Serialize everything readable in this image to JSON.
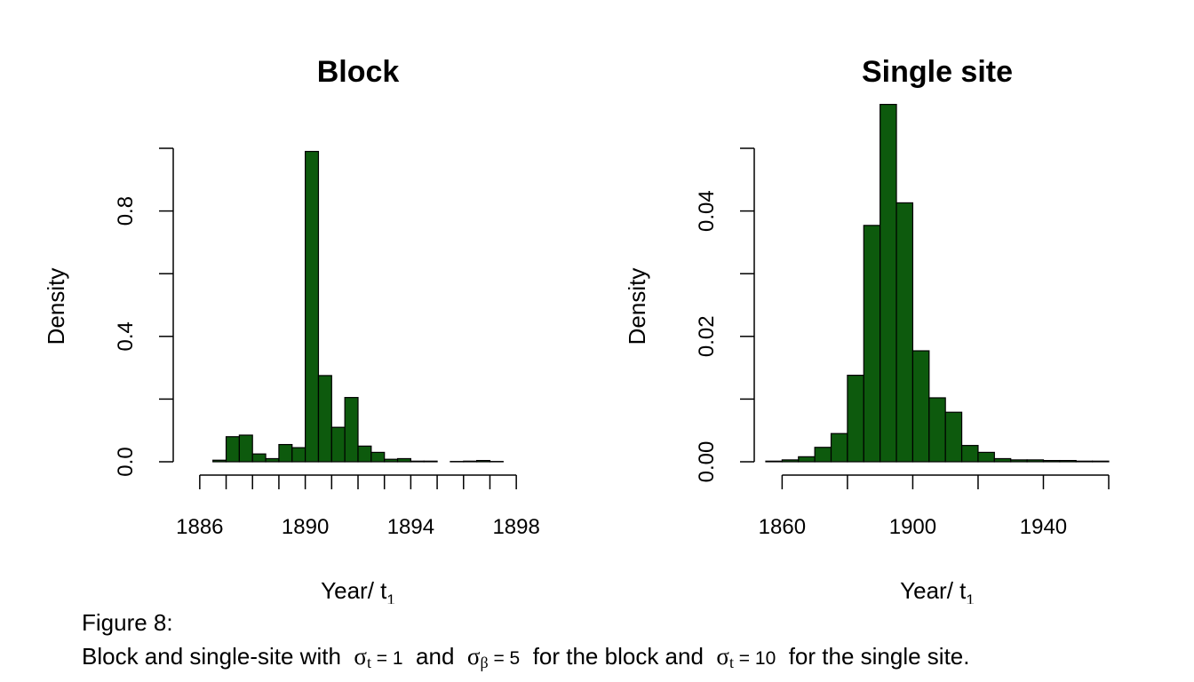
{
  "chart_data": [
    {
      "type": "bar",
      "title": "Block",
      "xlabel": "Year/ t",
      "xlabel_sub": "1",
      "ylabel": "Density",
      "xlim": [
        1885.5,
        1898.5
      ],
      "ylim": [
        0,
        1.0
      ],
      "xticks": [
        1886,
        1887,
        1888,
        1889,
        1890,
        1891,
        1892,
        1893,
        1894,
        1895,
        1896,
        1897,
        1898
      ],
      "xtick_labels": [
        "1886",
        "",
        "",
        "",
        "1890",
        "",
        "",
        "",
        "1894",
        "",
        "",
        "",
        "1898"
      ],
      "yticks": [
        0.0,
        0.2,
        0.4,
        0.6,
        0.8,
        1.0
      ],
      "ytick_labels": [
        "0.0",
        "",
        "0.4",
        "",
        "0.8",
        ""
      ],
      "bin_start": 1886,
      "bin_width": 0.5,
      "values": [
        0.0,
        0.005,
        0.08,
        0.085,
        0.025,
        0.01,
        0.055,
        0.045,
        0.99,
        0.275,
        0.11,
        0.205,
        0.05,
        0.03,
        0.008,
        0.01,
        0.002,
        0.002,
        0.0,
        0.001,
        0.002,
        0.004,
        0.001,
        0.0,
        0.0
      ],
      "bar_color": "#0d5a0d"
    },
    {
      "type": "bar",
      "title": "Single site",
      "xlabel": "Year/ t",
      "xlabel_sub": "1",
      "ylabel": "Density",
      "xlim": [
        1855,
        1960
      ],
      "ylim": [
        0,
        0.05
      ],
      "xticks": [
        1860,
        1880,
        1900,
        1920,
        1940,
        1960
      ],
      "xtick_labels": [
        "1860",
        "",
        "1900",
        "",
        "1940",
        ""
      ],
      "yticks": [
        0.0,
        0.01,
        0.02,
        0.03,
        0.04,
        0.05
      ],
      "ytick_labels": [
        "0.00",
        "",
        "0.02",
        "",
        "0.04",
        ""
      ],
      "bin_start": 1855,
      "bin_width": 5,
      "values": [
        0.0001,
        0.0003,
        0.0008,
        0.0023,
        0.0045,
        0.0138,
        0.0377,
        0.057,
        0.0413,
        0.0177,
        0.0102,
        0.0079,
        0.0026,
        0.0015,
        0.0005,
        0.0003,
        0.0003,
        0.0002,
        0.0002,
        0.0001,
        0.0001
      ],
      "bar_color": "#0d5a0d"
    }
  ],
  "caption": {
    "line1": "Figure 8:",
    "prefix": "Block and single-site with",
    "sym1": "σ",
    "sub1": "t",
    "eq1": " = 1",
    "and": "and",
    "sym2": "σ",
    "sub2": "β",
    "eq2": " = 5",
    "mid": "for the block and",
    "sym3": "σ",
    "sub3": "t",
    "eq3": " = 10",
    "suffix": "for the single site."
  }
}
